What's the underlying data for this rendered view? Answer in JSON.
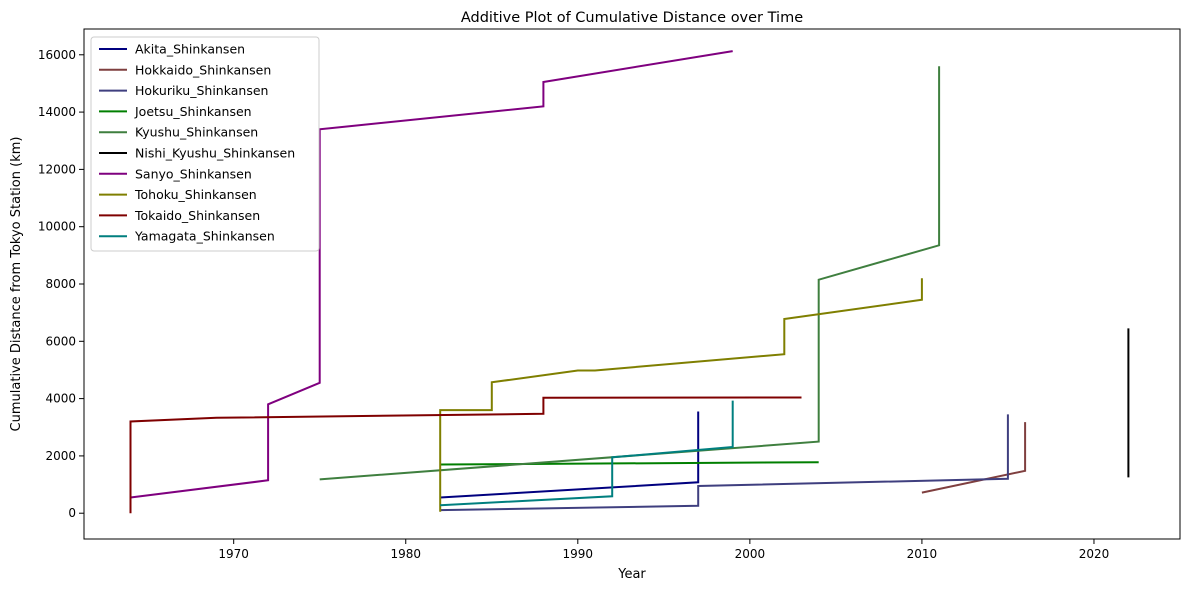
{
  "chart_data": {
    "type": "line",
    "title": "Additive Plot of Cumulative Distance over Time",
    "xlabel": "Year",
    "ylabel": "Cumulative Distance from Tokyo Station (km)",
    "xlim": [
      1961.3,
      2025.0
    ],
    "ylim": [
      -900,
      16900
    ],
    "xticks": [
      1970,
      1980,
      1990,
      2000,
      2010,
      2020
    ],
    "yticks": [
      0,
      2000,
      4000,
      6000,
      8000,
      10000,
      12000,
      14000,
      16000
    ],
    "grid": false,
    "legend_position": "upper-left",
    "series": [
      {
        "name": "Akita_Shinkansen",
        "color": "#00007f",
        "points": [
          [
            1982,
            550
          ],
          [
            1997,
            1080
          ],
          [
            1997,
            3550
          ]
        ]
      },
      {
        "name": "Hokkaido_Shinkansen",
        "color": "#7f3f3f",
        "points": [
          [
            2010,
            720
          ],
          [
            2016,
            1480
          ],
          [
            2016,
            3180
          ]
        ]
      },
      {
        "name": "Hokuriku_Shinkansen",
        "color": "#3f3f7f",
        "points": [
          [
            1982,
            110
          ],
          [
            1997,
            260
          ],
          [
            1997,
            950
          ],
          [
            2015,
            1200
          ],
          [
            2015,
            3450
          ]
        ]
      },
      {
        "name": "Joetsu_Shinkansen",
        "color": "#007f00",
        "points": [
          [
            1982,
            1700
          ],
          [
            2004,
            1780
          ]
        ]
      },
      {
        "name": "Kyushu_Shinkansen",
        "color": "#3f7f3f",
        "points": [
          [
            1975,
            1180
          ],
          [
            2004,
            2500
          ],
          [
            2004,
            8150
          ],
          [
            2011,
            9350
          ],
          [
            2011,
            15600
          ]
        ]
      },
      {
        "name": "Nishi_Kyushu_Shinkansen",
        "color": "#000000",
        "points": [
          [
            2022,
            1250
          ],
          [
            2022,
            6450
          ]
        ]
      },
      {
        "name": "Sanyo_Shinkansen",
        "color": "#7f007f",
        "points": [
          [
            1964,
            550
          ],
          [
            1972,
            1150
          ],
          [
            1972,
            3800
          ],
          [
            1975,
            4550
          ],
          [
            1975,
            13400
          ],
          [
            1988,
            14200
          ],
          [
            1988,
            15050
          ],
          [
            1999,
            16130
          ]
        ]
      },
      {
        "name": "Tohoku_Shinkansen",
        "color": "#7f7f00",
        "points": [
          [
            1982,
            50
          ],
          [
            1982,
            3600
          ],
          [
            1985,
            3600
          ],
          [
            1985,
            4570
          ],
          [
            1990,
            4980
          ],
          [
            1991,
            4980
          ],
          [
            2002,
            5550
          ],
          [
            2002,
            6780
          ],
          [
            2010,
            7450
          ],
          [
            2010,
            8200
          ]
        ]
      },
      {
        "name": "Tokaido_Shinkansen",
        "color": "#7f0000",
        "points": [
          [
            1964,
            0
          ],
          [
            1964,
            3200
          ],
          [
            1969,
            3330
          ],
          [
            1988,
            3470
          ],
          [
            1988,
            4030
          ],
          [
            2003,
            4040
          ]
        ]
      },
      {
        "name": "Yamagata_Shinkansen",
        "color": "#007f7f",
        "points": [
          [
            1982,
            280
          ],
          [
            1992,
            590
          ],
          [
            1992,
            1950
          ],
          [
            1999,
            2310
          ],
          [
            1999,
            3930
          ]
        ]
      }
    ]
  }
}
